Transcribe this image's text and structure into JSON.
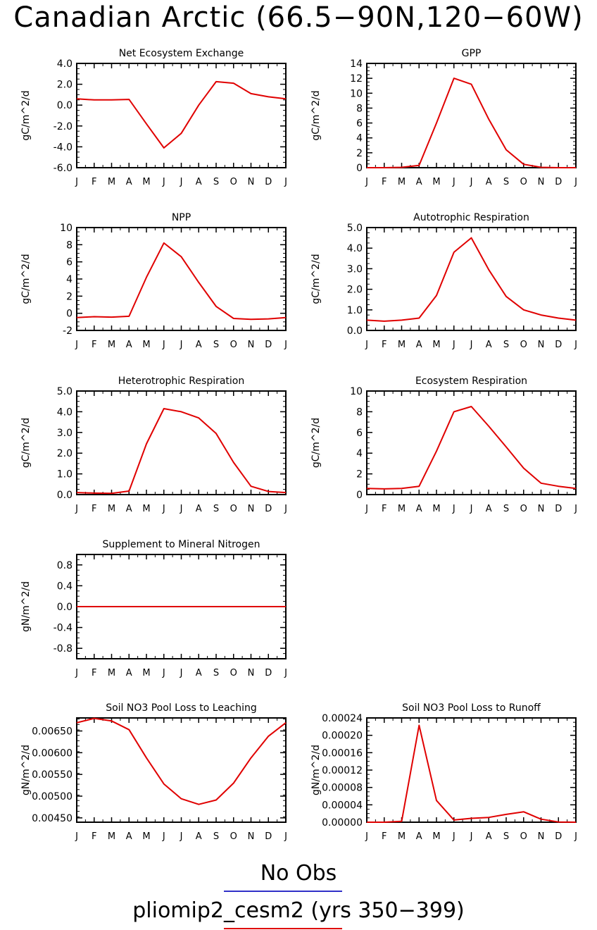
{
  "figure": {
    "title": "Canadian Arctic (66.5−90N,120−60W)",
    "legend": [
      {
        "label": "No Obs",
        "color": "#3030c8"
      },
      {
        "label": "pliomip2_cesm2 (yrs 350−399)",
        "color": "#e00000"
      }
    ]
  },
  "chart_data": [
    {
      "type": "line",
      "title": "Net Ecosystem Exchange",
      "ylabel": "gC/m^2/d",
      "categories": [
        "J",
        "F",
        "M",
        "A",
        "M",
        "J",
        "J",
        "A",
        "S",
        "O",
        "N",
        "D",
        "J"
      ],
      "ylim": [
        -6.0,
        4.0
      ],
      "yticks": [
        "-6.0",
        "-4.0",
        "-2.0",
        "0.0",
        "2.0",
        "4.0"
      ],
      "ytick_values": [
        -6,
        -4,
        -2,
        0,
        2,
        4
      ],
      "series": [
        {
          "color": "#e00000",
          "values": [
            0.6,
            0.5,
            0.5,
            0.55,
            -1.8,
            -4.1,
            -2.7,
            0.0,
            2.25,
            2.1,
            1.1,
            0.8,
            0.6
          ]
        }
      ]
    },
    {
      "type": "line",
      "title": "GPP",
      "ylabel": "gC/m^2/d",
      "categories": [
        "J",
        "F",
        "M",
        "A",
        "M",
        "J",
        "J",
        "A",
        "S",
        "O",
        "N",
        "D",
        "J"
      ],
      "ylim": [
        0,
        14
      ],
      "yticks": [
        "0",
        "2",
        "4",
        "6",
        "8",
        "10",
        "12",
        "14"
      ],
      "ytick_values": [
        0,
        2,
        4,
        6,
        8,
        10,
        12,
        14
      ],
      "series": [
        {
          "color": "#e00000",
          "values": [
            0.0,
            0.0,
            0.05,
            0.3,
            6.0,
            12.0,
            11.2,
            6.5,
            2.4,
            0.45,
            0.05,
            0.0,
            0.0
          ]
        }
      ]
    },
    {
      "type": "line",
      "title": "NPP",
      "ylabel": "gC/m^2/d",
      "categories": [
        "J",
        "F",
        "M",
        "A",
        "M",
        "J",
        "J",
        "A",
        "S",
        "O",
        "N",
        "D",
        "J"
      ],
      "ylim": [
        -2,
        10
      ],
      "yticks": [
        "-2",
        "0",
        "2",
        "4",
        "6",
        "8",
        "10"
      ],
      "ytick_values": [
        -2,
        0,
        2,
        4,
        6,
        8,
        10
      ],
      "series": [
        {
          "color": "#e00000",
          "values": [
            -0.5,
            -0.4,
            -0.45,
            -0.35,
            4.2,
            8.2,
            6.6,
            3.6,
            0.8,
            -0.6,
            -0.7,
            -0.65,
            -0.5
          ]
        }
      ]
    },
    {
      "type": "line",
      "title": "Autotrophic Respiration",
      "ylabel": "gC/m^2/d",
      "categories": [
        "J",
        "F",
        "M",
        "A",
        "M",
        "J",
        "J",
        "A",
        "S",
        "O",
        "N",
        "D",
        "J"
      ],
      "ylim": [
        0,
        5
      ],
      "yticks": [
        "0.0",
        "1.0",
        "2.0",
        "3.0",
        "4.0",
        "5.0"
      ],
      "ytick_values": [
        0,
        1,
        2,
        3,
        4,
        5
      ],
      "series": [
        {
          "color": "#e00000",
          "values": [
            0.5,
            0.45,
            0.5,
            0.6,
            1.7,
            3.8,
            4.5,
            2.95,
            1.65,
            1.0,
            0.75,
            0.6,
            0.5
          ]
        }
      ]
    },
    {
      "type": "line",
      "title": "Heterotrophic Respiration",
      "ylabel": "gC/m^2/d",
      "categories": [
        "J",
        "F",
        "M",
        "A",
        "M",
        "J",
        "J",
        "A",
        "S",
        "O",
        "N",
        "D",
        "J"
      ],
      "ylim": [
        0,
        5
      ],
      "yticks": [
        "0.0",
        "1.0",
        "2.0",
        "3.0",
        "4.0",
        "5.0"
      ],
      "ytick_values": [
        0,
        1,
        2,
        3,
        4,
        5
      ],
      "series": [
        {
          "color": "#e00000",
          "values": [
            0.1,
            0.07,
            0.06,
            0.17,
            2.45,
            4.15,
            4.0,
            3.7,
            2.95,
            1.55,
            0.4,
            0.15,
            0.1
          ]
        }
      ]
    },
    {
      "type": "line",
      "title": "Ecosystem Respiration",
      "ylabel": "gC/m^2/d",
      "categories": [
        "J",
        "F",
        "M",
        "A",
        "M",
        "J",
        "J",
        "A",
        "S",
        "O",
        "N",
        "D",
        "J"
      ],
      "ylim": [
        0,
        10
      ],
      "yticks": [
        "0",
        "2",
        "4",
        "6",
        "8",
        "10"
      ],
      "ytick_values": [
        0,
        2,
        4,
        6,
        8,
        10
      ],
      "series": [
        {
          "color": "#e00000",
          "values": [
            0.6,
            0.55,
            0.6,
            0.8,
            4.2,
            8.0,
            8.5,
            6.6,
            4.6,
            2.55,
            1.1,
            0.8,
            0.6
          ]
        }
      ]
    },
    {
      "type": "line",
      "title": "Supplement to Mineral Nitrogen",
      "ylabel": "gN/m^2/d",
      "categories": [
        "J",
        "F",
        "M",
        "A",
        "M",
        "J",
        "J",
        "A",
        "S",
        "O",
        "N",
        "D",
        "J"
      ],
      "ylim": [
        -1.0,
        1.0
      ],
      "yticks": [
        "-0.8",
        "-0.4",
        "0.0",
        "0.4",
        "0.8"
      ],
      "ytick_values": [
        -0.8,
        -0.4,
        0.0,
        0.4,
        0.8
      ],
      "series": [
        {
          "color": "#e00000",
          "values": [
            0,
            0,
            0,
            0,
            0,
            0,
            0,
            0,
            0,
            0,
            0,
            0,
            0
          ]
        }
      ]
    },
    {
      "type": "line",
      "title": "Soil NO3 Pool Loss to Leaching",
      "ylabel": "gN/m^2/d",
      "categories": [
        "J",
        "F",
        "M",
        "A",
        "M",
        "J",
        "J",
        "A",
        "S",
        "O",
        "N",
        "D",
        "J"
      ],
      "ylim": [
        0.0044,
        0.0068
      ],
      "yticks": [
        "0.00450",
        "0.00500",
        "0.00550",
        "0.00600",
        "0.00650"
      ],
      "ytick_values": [
        0.0045,
        0.005,
        0.0055,
        0.006,
        0.0065
      ],
      "series": [
        {
          "color": "#e00000",
          "values": [
            0.00669,
            0.00679,
            0.00673,
            0.00653,
            0.00588,
            0.00528,
            0.00494,
            0.00481,
            0.00491,
            0.0053,
            0.00588,
            0.00638,
            0.00669
          ]
        }
      ]
    },
    {
      "type": "line",
      "title": "Soil NO3 Pool Loss to Runoff",
      "ylabel": "gN/m^2/d",
      "categories": [
        "J",
        "F",
        "M",
        "A",
        "M",
        "J",
        "J",
        "A",
        "S",
        "O",
        "N",
        "D",
        "J"
      ],
      "ylim": [
        0,
        0.00024
      ],
      "yticks": [
        "0.00000",
        "0.00004",
        "0.00008",
        "0.00012",
        "0.00016",
        "0.00020",
        "0.00024"
      ],
      "ytick_values": [
        0,
        4e-05,
        8e-05,
        0.00012,
        0.00016,
        0.0002,
        0.00024
      ],
      "series": [
        {
          "color": "#e00000",
          "values": [
            0.0,
            0.0,
            2e-06,
            0.000223,
            5e-05,
            5e-06,
            9e-06,
            1.1e-05,
            1.8e-05,
            2.4e-05,
            7e-06,
            5e-07,
            0.0
          ]
        }
      ]
    }
  ]
}
